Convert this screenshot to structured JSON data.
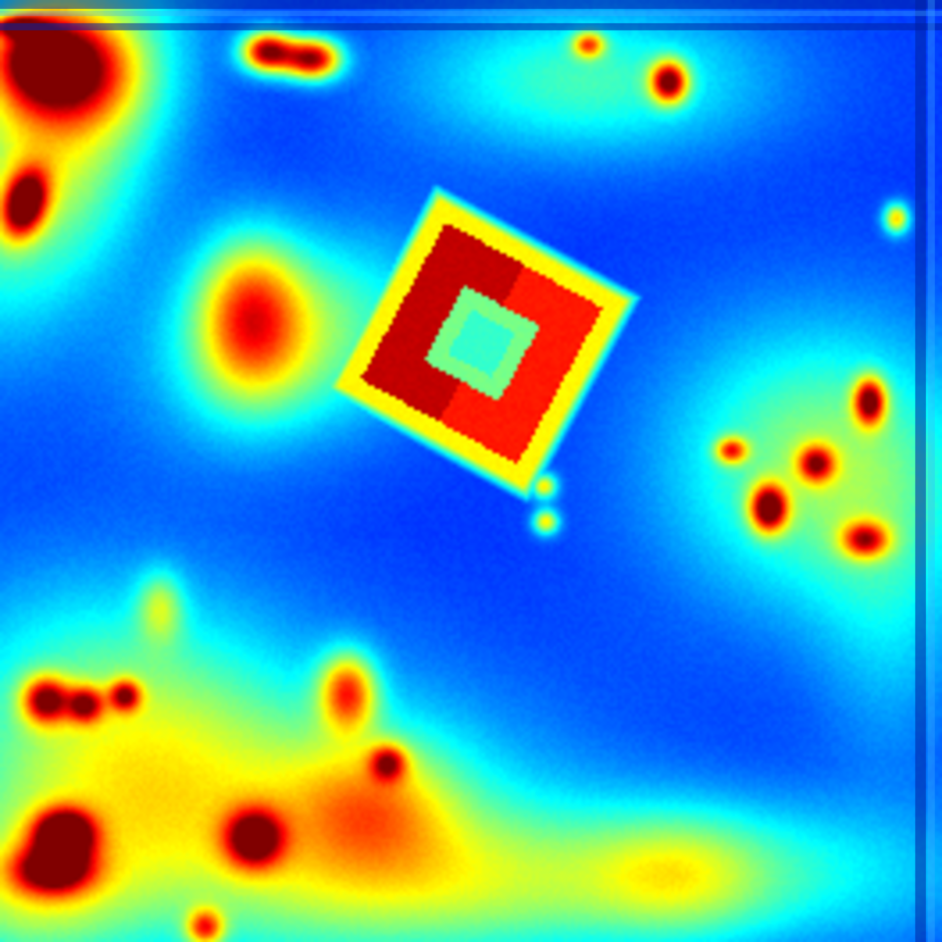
{
  "image": {
    "kind": "false-color heat map (jet colormap)",
    "colormap": "jet",
    "colors": {
      "low": "#0033dd",
      "base": "#0a48f0",
      "mid": "#00e0ff",
      "high_mid": "#f5f000",
      "high": "#ff3000",
      "peak": "#b00010",
      "edge_border": "#0020a0"
    },
    "labels": []
  }
}
